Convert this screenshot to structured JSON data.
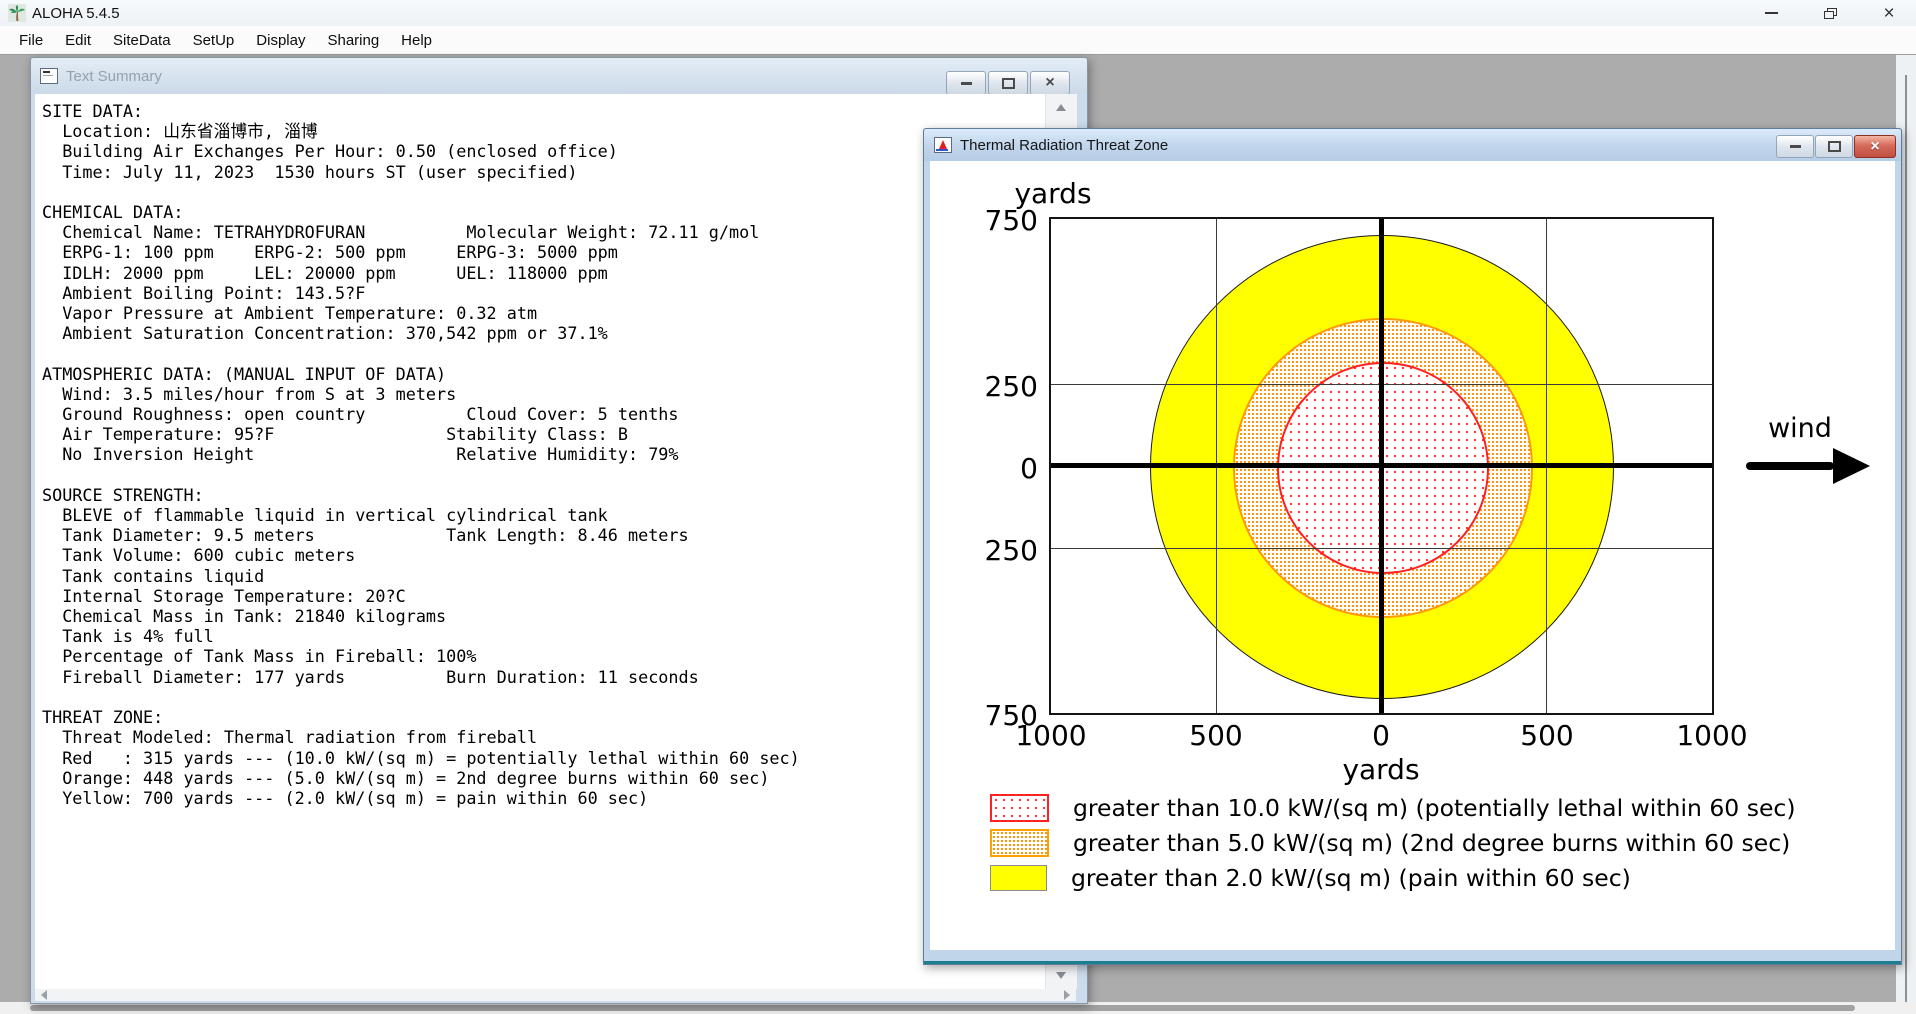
{
  "app": {
    "title": "ALOHA 5.4.5",
    "menu": [
      "File",
      "Edit",
      "SiteData",
      "SetUp",
      "Display",
      "Sharing",
      "Help"
    ]
  },
  "text_summary": {
    "title": "Text Summary",
    "lines": [
      "SITE DATA:",
      "  Location: 山东省淄博市, 淄博",
      "  Building Air Exchanges Per Hour: 0.50 (enclosed office)",
      "  Time: July 11, 2023  1530 hours ST (user specified)",
      "",
      "CHEMICAL DATA:",
      "  Chemical Name: TETRAHYDROFURAN          Molecular Weight: 72.11 g/mol",
      "  ERPG-1: 100 ppm    ERPG-2: 500 ppm     ERPG-3: 5000 ppm",
      "  IDLH: 2000 ppm     LEL: 20000 ppm      UEL: 118000 ppm",
      "  Ambient Boiling Point: 143.5?F",
      "  Vapor Pressure at Ambient Temperature: 0.32 atm",
      "  Ambient Saturation Concentration: 370,542 ppm or 37.1%",
      "",
      "ATMOSPHERIC DATA: (MANUAL INPUT OF DATA)",
      "  Wind: 3.5 miles/hour from S at 3 meters",
      "  Ground Roughness: open country          Cloud Cover: 5 tenths",
      "  Air Temperature: 95?F                 Stability Class: B",
      "  No Inversion Height                    Relative Humidity: 79%",
      "",
      "SOURCE STRENGTH:",
      "  BLEVE of flammable liquid in vertical cylindrical tank",
      "  Tank Diameter: 9.5 meters             Tank Length: 8.46 meters",
      "  Tank Volume: 600 cubic meters",
      "  Tank contains liquid",
      "  Internal Storage Temperature: 20?C",
      "  Chemical Mass in Tank: 21840 kilograms",
      "  Tank is 4% full",
      "  Percentage of Tank Mass in Fireball: 100%",
      "  Fireball Diameter: 177 yards          Burn Duration: 11 seconds",
      "",
      "THREAT ZONE:",
      "  Threat Modeled: Thermal radiation from fireball",
      "  Red   : 315 yards --- (10.0 kW/(sq m) = potentially lethal within 60 sec)",
      "  Orange: 448 yards --- (5.0 kW/(sq m) = 2nd degree burns within 60 sec)",
      "  Yellow: 700 yards --- (2.0 kW/(sq m) = pain within 60 sec)"
    ]
  },
  "threat": {
    "title": "Thermal Radiation Threat Zone",
    "plot": {
      "y_axis_label": "yards",
      "x_axis_label": "yards",
      "y_ticks": [
        "750",
        "250",
        "0",
        "250",
        "750"
      ],
      "x_ticks": [
        "1000",
        "500",
        "0",
        "500",
        "1000"
      ],
      "wind_label": "wind"
    },
    "legend": [
      {
        "swatch": "red-dotted-swatch",
        "pattern": "sw-red pat-red",
        "label": "greater than 10.0 kW/(sq m) (potentially lethal within 60 sec)"
      },
      {
        "swatch": "orange-dotted-swatch",
        "pattern": "sw-orange pat-orange",
        "label": "greater than 5.0 kW/(sq m) (2nd degree burns within 60 sec)"
      },
      {
        "swatch": "yellow-solid-swatch",
        "pattern": "sw-yellow",
        "label": "greater than 2.0 kW/(sq m) (pain within 60 sec)"
      }
    ]
  },
  "chart_data": {
    "type": "area",
    "title": "Thermal Radiation Threat Zone",
    "xlabel": "yards",
    "ylabel": "yards",
    "xlim": [
      -1000,
      1000
    ],
    "ylim": [
      -750,
      750
    ],
    "x_tick_labels": [
      "1000",
      "500",
      "0",
      "500",
      "1000"
    ],
    "y_tick_labels": [
      "750",
      "250",
      "0",
      "250",
      "750"
    ],
    "grid": true,
    "center": [
      0,
      0
    ],
    "wind_direction": "left-to-right",
    "zones": [
      {
        "name": "red",
        "radius_yards": 315,
        "threshold": "greater than 10.0 kW/(sq m)",
        "effect": "potentially lethal within 60 sec",
        "color": "#ff2020",
        "style": "dotted"
      },
      {
        "name": "orange",
        "radius_yards": 448,
        "threshold": "greater than 5.0 kW/(sq m)",
        "effect": "2nd degree burns within 60 sec",
        "color": "#ff9a00",
        "style": "dotted"
      },
      {
        "name": "yellow",
        "radius_yards": 700,
        "threshold": "greater than 2.0 kW/(sq m)",
        "effect": "pain within 60 sec",
        "color": "#ffff00",
        "style": "solid"
      }
    ]
  },
  "colors": {
    "mdi_background": "#acacac",
    "active_title_text": "#141414",
    "inactive_title_text": "#95a1ac",
    "close_button_red": "#c04f41",
    "window_frame_blue": "#c0d5ea",
    "teal_bottom_edge": "#1b7f8f",
    "zone_yellow": "#ffff00",
    "zone_orange_dot": "#ff9010",
    "zone_red_dot": "#ff3a3a"
  }
}
